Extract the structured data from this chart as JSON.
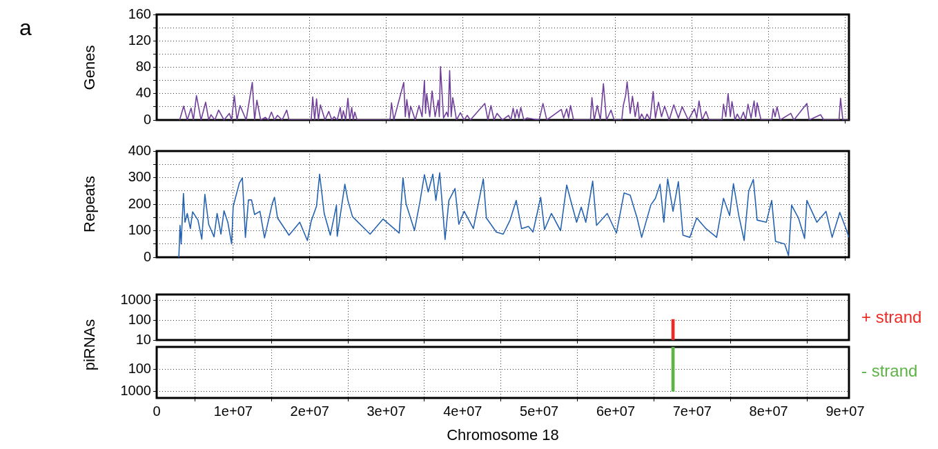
{
  "chart_data": [
    {
      "type": "line",
      "ylabel": "Genes",
      "annotations": [
        "a"
      ],
      "xlim": [
        0,
        90500000.0
      ],
      "ylim": [
        0,
        160
      ],
      "marker": "none",
      "grid": true,
      "tick_labels": "y",
      "xticks": [
        {
          "value": 10000000.0,
          "label": null
        },
        {
          "value": 20000000.0,
          "label": null
        },
        {
          "value": 30000000.0,
          "label": null
        },
        {
          "value": 40000000.0,
          "label": null
        },
        {
          "value": 50000000.0,
          "label": null
        },
        {
          "value": 60000000.0,
          "label": null
        },
        {
          "value": 70000000.0,
          "label": null
        },
        {
          "value": 80000000.0,
          "label": null
        },
        {
          "value": 90000000.0,
          "label": null
        }
      ],
      "yticks": [
        0,
        {
          "value": 20,
          "label": null
        },
        40,
        {
          "value": 60,
          "label": null
        },
        80,
        {
          "value": 100,
          "label": null
        },
        120,
        {
          "value": 140,
          "label": null
        },
        160
      ],
      "series": [
        {
          "color": "#6f3f9a",
          "x": [
            3000000.0,
            3530000.0,
            4000000.0,
            4500000.0,
            4800000.0,
            5200000.0,
            5800000.0,
            6400000.0,
            6800000.0,
            7100000.0,
            7600000.0,
            8100000.0,
            8800000.0,
            9500000.0,
            9800000.0,
            10150000.0,
            10500000.0,
            10900000.0,
            11700000.0,
            12500000.0,
            12800000.0,
            13100000.0,
            13600000.0,
            14200000.0,
            14600000.0,
            15000000.0,
            15400000.0,
            15800000.0,
            16400000.0,
            17000000.0,
            17300000.0,
            20200000.0,
            20400000.0,
            20650000.0,
            20900000.0,
            21150000.0,
            21400000.0,
            22000000.0,
            22500000.0,
            22900000.0,
            23200000.0,
            23600000.0,
            24000000.0,
            24200000.0,
            24400000.0,
            24700000.0,
            25000000.0,
            25250000.0,
            25500000.0,
            25700000.0,
            25900000.0,
            26200000.0,
            30500000.0,
            30700000.0,
            31000000.0,
            32300000.0,
            32500000.0,
            32700000.0,
            33000000.0,
            33200000.0,
            33800000.0,
            34300000.0,
            34700000.0,
            35000000.0,
            35150000.0,
            35300000.0,
            35700000.0,
            36000000.0,
            36400000.0,
            36800000.0,
            36950000.0,
            37100000.0,
            37500000.0,
            37900000.0,
            38100000.0,
            38300000.0,
            38500000.0,
            38700000.0,
            39200000.0,
            39700000.0,
            40200000.0,
            40600000.0,
            41000000.0,
            42900000.0,
            43300000.0,
            43700000.0,
            44100000.0,
            44500000.0,
            45200000.0,
            46000000.0,
            46300000.0,
            46600000.0,
            46850000.0,
            47100000.0,
            47350000.0,
            47600000.0,
            48000000.0,
            48400000.0,
            50000000.0,
            50500000.0,
            51000000.0,
            52900000.0,
            53200000.0,
            53600000.0,
            53850000.0,
            54100000.0,
            54500000.0,
            56700000.0,
            56900000.0,
            57200000.0,
            57600000.0,
            58000000.0,
            58400000.0,
            58800000.0,
            59400000.0,
            59800000.0,
            60800000.0,
            61000000.0,
            61300000.0,
            61500000.0,
            61900000.0,
            62200000.0,
            62550000.0,
            62900000.0,
            63100000.0,
            63400000.0,
            63800000.0,
            64100000.0,
            64500000.0,
            64900000.0,
            65200000.0,
            65600000.0,
            66000000.0,
            66400000.0,
            67000000.0,
            67600000.0,
            68200000.0,
            68700000.0,
            69500000.0,
            70300000.0,
            70600000.0,
            70900000.0,
            71300000.0,
            71800000.0,
            72200000.0,
            73900000.0,
            74100000.0,
            74400000.0,
            74700000.0,
            75000000.0,
            75200000.0,
            75600000.0,
            75900000.0,
            76300000.0,
            76700000.0,
            77000000.0,
            77300000.0,
            77700000.0,
            78100000.0,
            78300000.0,
            78500000.0,
            79000000.0,
            80400000.0,
            80600000.0,
            80850000.0,
            81100000.0,
            81500000.0,
            82900000.0,
            83300000.0,
            85000000.0,
            85300000.0,
            86800000.0,
            87200000.0,
            89200000.0,
            89400000.0,
            89700000.0,
            90500000.0
          ],
          "values": [
            0,
            21,
            0,
            18,
            0,
            37,
            0,
            27,
            0,
            8,
            0,
            15,
            0,
            10,
            0,
            37,
            0,
            22,
            0,
            57,
            0,
            30,
            0,
            4,
            0,
            12,
            0,
            7,
            0,
            15,
            0,
            0,
            35,
            0,
            32,
            0,
            23,
            0,
            13,
            0,
            5,
            0,
            19,
            0,
            14,
            0,
            33,
            0,
            19,
            0,
            12,
            0,
            0,
            26,
            0,
            57,
            5,
            31,
            3,
            21,
            0,
            22,
            5,
            60,
            10,
            40,
            5,
            44,
            5,
            30,
            5,
            81,
            3,
            12,
            5,
            75,
            5,
            34,
            0,
            11,
            0,
            7,
            0,
            25,
            0,
            22,
            0,
            10,
            0,
            7,
            0,
            18,
            3,
            16,
            3,
            19,
            0,
            3,
            0,
            25,
            0,
            16,
            3,
            17,
            3,
            22,
            0,
            0,
            34,
            0,
            22,
            0,
            55,
            0,
            15,
            0,
            0,
            22,
            37,
            58,
            10,
            36,
            5,
            27,
            0,
            9,
            0,
            9,
            0,
            43,
            3,
            27,
            5,
            21,
            0,
            23,
            3,
            20,
            0,
            17,
            3,
            29,
            0,
            13,
            0,
            0,
            24,
            5,
            40,
            5,
            28,
            0,
            9,
            0,
            12,
            0,
            24,
            3,
            29,
            5,
            26,
            0,
            0,
            17,
            5,
            20,
            0,
            10,
            0,
            25,
            0,
            8,
            0,
            0,
            33,
            0,
            0
          ]
        }
      ]
    },
    {
      "type": "line",
      "ylabel": "Repeats",
      "xlim": [
        0,
        90500000.0
      ],
      "ylim": [
        0,
        400
      ],
      "marker": "none",
      "grid": true,
      "tick_labels": "y",
      "xticks": [
        {
          "value": 10000000.0,
          "label": null
        },
        {
          "value": 20000000.0,
          "label": null
        },
        {
          "value": 30000000.0,
          "label": null
        },
        {
          "value": 40000000.0,
          "label": null
        },
        {
          "value": 50000000.0,
          "label": null
        },
        {
          "value": 60000000.0,
          "label": null
        },
        {
          "value": 70000000.0,
          "label": null
        },
        {
          "value": 80000000.0,
          "label": null
        },
        {
          "value": 90000000.0,
          "label": null
        }
      ],
      "yticks": [
        0,
        {
          "value": 50,
          "label": null
        },
        100,
        {
          "value": 150,
          "label": null
        },
        200,
        {
          "value": 250,
          "label": null
        },
        300,
        {
          "value": 350,
          "label": null
        },
        400
      ],
      "series": [
        {
          "color": "#2563b0",
          "x": [
            2900000.0,
            3050000.0,
            3200000.0,
            3500000.0,
            3700000.0,
            4000000.0,
            4400000.0,
            4700000.0,
            5400000.0,
            5900000.0,
            6300000.0,
            6800000.0,
            7500000.0,
            7900000.0,
            8400000.0,
            8800000.0,
            9300000.0,
            9800000.0,
            10000000.0,
            10800000.0,
            11200000.0,
            11600000.0,
            12000000.0,
            12400000.0,
            12800000.0,
            13500000.0,
            14100000.0,
            15100000.0,
            15400000.0,
            15800000.0,
            17300000.0,
            18700000.0,
            19700000.0,
            20200000.0,
            20900000.0,
            21300000.0,
            21900000.0,
            22700000.0,
            23500000.0,
            23600000.0,
            24600000.0,
            25000000.0,
            25600000.0,
            27900000.0,
            29600000.0,
            31700000.0,
            32200000.0,
            32600000.0,
            33700000.0,
            34400000.0,
            35000000.0,
            35500000.0,
            36100000.0,
            36500000.0,
            37000000.0,
            37700000.0,
            38200000.0,
            39000000.0,
            39500000.0,
            40200000.0,
            41400000.0,
            42700000.0,
            43100000.0,
            44400000.0,
            45300000.0,
            46200000.0,
            47000000.0,
            47700000.0,
            48600000.0,
            49200000.0,
            50200000.0,
            50700000.0,
            51600000.0,
            52800000.0,
            53600000.0,
            54200000.0,
            54900000.0,
            55500000.0,
            56100000.0,
            57000000.0,
            57500000.0,
            58900000.0,
            60100000.0,
            61100000.0,
            61900000.0,
            62800000.0,
            63400000.0,
            64600000.0,
            65200000.0,
            65800000.0,
            66300000.0,
            66800000.0,
            67500000.0,
            68200000.0,
            68800000.0,
            69700000.0,
            70600000.0,
            71800000.0,
            73200000.0,
            74100000.0,
            74900000.0,
            75400000.0,
            76100000.0,
            76800000.0,
            77400000.0,
            78000000.0,
            78500000.0,
            79700000.0,
            80400000.0,
            80900000.0,
            82100000.0,
            82600000.0,
            83000000.0,
            83900000.0,
            84700000.0,
            85000000.0,
            86300000.0,
            87500000.0,
            88300000.0,
            89300000.0,
            90000000.0,
            90500000.0
          ],
          "values": [
            0,
            120,
            50,
            240,
            132,
            165,
            108,
            171,
            140,
            68,
            237,
            124,
            77,
            165,
            87,
            175,
            132,
            50,
            191,
            279,
            299,
            75,
            216,
            216,
            161,
            173,
            73,
            201,
            226,
            148,
            83,
            132,
            63,
            136,
            193,
            313,
            165,
            83,
            196,
            79,
            275,
            214,
            153,
            87,
            144,
            91,
            299,
            201,
            101,
            206,
            311,
            246,
            313,
            214,
            318,
            67,
            214,
            259,
            124,
            173,
            108,
            295,
            148,
            95,
            87,
            140,
            214,
            108,
            116,
            95,
            226,
            104,
            165,
            100,
            272,
            206,
            132,
            189,
            132,
            287,
            120,
            165,
            91,
            242,
            234,
            148,
            75,
            197,
            222,
            275,
            132,
            295,
            173,
            285,
            83,
            75,
            148,
            108,
            75,
            222,
            157,
            277,
            157,
            63,
            250,
            293,
            140,
            132,
            214,
            60,
            50,
            6,
            196,
            148,
            71,
            214,
            132,
            173,
            75,
            169,
            116,
            75
          ]
        }
      ]
    },
    {
      "type": "bar",
      "ylabel": "piRNAs",
      "xlim": [
        0,
        90500000.0
      ],
      "ylim": [
        10,
        2000
      ],
      "log": true,
      "grid": true,
      "tick_labels": "y",
      "xticks": [
        {
          "value": 10000000.0,
          "label": null
        },
        {
          "value": 20000000.0,
          "label": null
        },
        {
          "value": 30000000.0,
          "label": null
        },
        {
          "value": 40000000.0,
          "label": null
        },
        {
          "value": 50000000.0,
          "label": null
        },
        {
          "value": 60000000.0,
          "label": null
        },
        {
          "value": 70000000.0,
          "label": null
        },
        {
          "value": 80000000.0,
          "label": null
        },
        {
          "value": 90000000.0,
          "label": null
        }
      ],
      "yticks": [
        10,
        100,
        1000
      ],
      "series": [
        {
          "name": "+ strand",
          "color": "#ee2a24",
          "x": [
            67500000.0
          ],
          "values": [
            110
          ]
        }
      ]
    },
    {
      "type": "bar",
      "xlabel": "Chromosome 18",
      "xlim": [
        0,
        90500000.0
      ],
      "ylim": [
        2000,
        10
      ],
      "log": true,
      "grid": true,
      "xticks": [
        0,
        {
          "value": 10000000.0,
          "label": "1e+07"
        },
        {
          "value": 20000000.0,
          "label": "2e+07"
        },
        {
          "value": 30000000.0,
          "label": "3e+07"
        },
        {
          "value": 40000000.0,
          "label": "4e+07"
        },
        {
          "value": 50000000.0,
          "label": "5e+07"
        },
        {
          "value": 60000000.0,
          "label": "6e+07"
        },
        {
          "value": 70000000.0,
          "label": "7e+07"
        },
        {
          "value": 80000000.0,
          "label": "8e+07"
        },
        {
          "value": 90000000.0,
          "label": "9e+07"
        }
      ],
      "yticks": [
        100,
        1000
      ],
      "series": [
        {
          "name": "- strand",
          "color": "#5db346",
          "x": [
            67500000.0
          ],
          "values": [
            1000
          ]
        }
      ]
    }
  ]
}
